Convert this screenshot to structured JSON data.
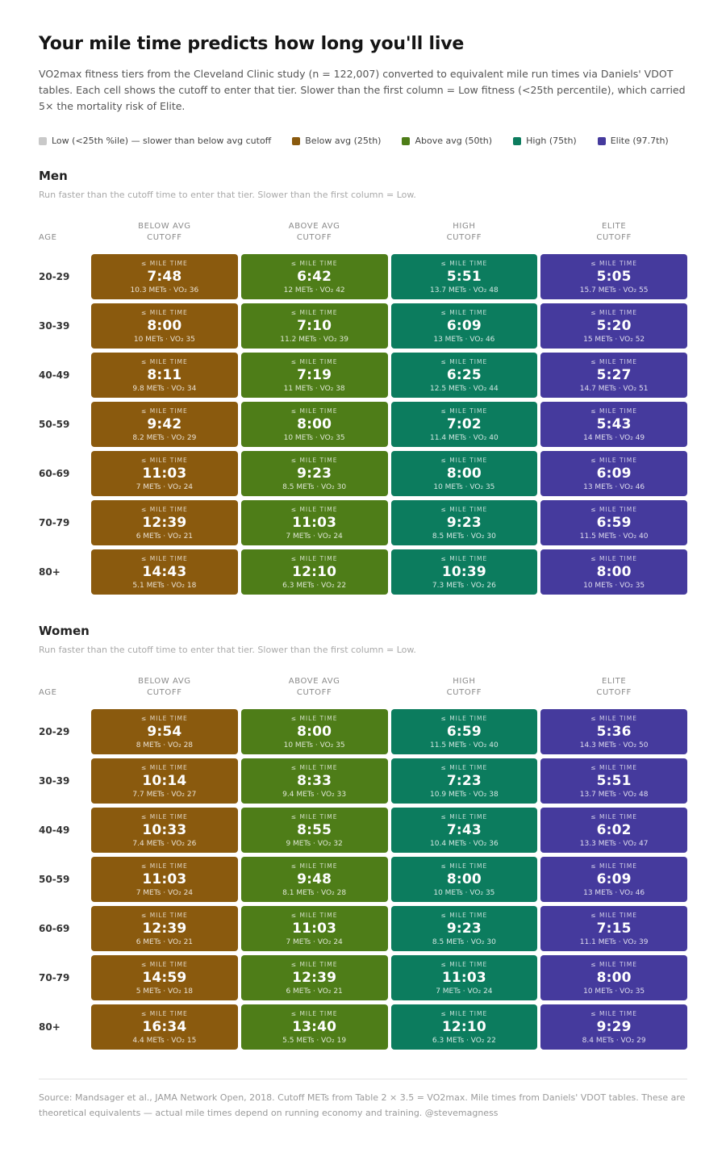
{
  "chart_data": {
    "type": "table",
    "title": "Your mile time predicts how long you'll live",
    "subtitle": "VO2max fitness tiers from the Cleveland Clinic study (n = 122,007) converted to equivalent mile run times via Daniels' VDOT tables. Each cell shows the cutoff to enter that tier. Slower than the first column = Low fitness (<25th percentile), which carried 5× the mortality risk of Elite.",
    "footer": "Source: Mandsager et al., JAMA Network Open, 2018. Cutoff METs from Table 2 × 3.5 = VO2max. Mile times from Daniels' VDOT tables. These are theoretical equivalents — actual mile times depend on running economy and training. @stevemagness",
    "tier_colors": {
      "low": "#c9c9c9",
      "below": "#8a5a0e",
      "above": "#4e7d18",
      "high": "#0c7c5e",
      "elite": "#453a9d"
    },
    "legend": [
      {
        "key": "low",
        "label": "Low (<25th %ile) — slower than below avg cutoff"
      },
      {
        "key": "below",
        "label": "Below avg (25th)"
      },
      {
        "key": "above",
        "label": "Above avg (50th)"
      },
      {
        "key": "high",
        "label": "High (75th)"
      },
      {
        "key": "elite",
        "label": "Elite (97.7th)"
      }
    ],
    "age_header": "AGE",
    "cell_label": "≤ MILE TIME",
    "columns": [
      {
        "key": "below",
        "lines": [
          "BELOW AVG",
          "CUTOFF"
        ]
      },
      {
        "key": "above",
        "lines": [
          "ABOVE AVG",
          "CUTOFF"
        ]
      },
      {
        "key": "high",
        "lines": [
          "HIGH",
          "CUTOFF"
        ]
      },
      {
        "key": "elite",
        "lines": [
          "ELITE",
          "CUTOFF"
        ]
      }
    ],
    "sections": [
      {
        "name": "Men",
        "caption": "Run faster than the cutoff time to enter that tier. Slower than the first column = Low.",
        "rows": [
          {
            "age": "20-29",
            "cells": [
              {
                "time": "7:48",
                "meta": "10.3 METs · VO₂ 36"
              },
              {
                "time": "6:42",
                "meta": "12 METs · VO₂ 42"
              },
              {
                "time": "5:51",
                "meta": "13.7 METs · VO₂ 48"
              },
              {
                "time": "5:05",
                "meta": "15.7 METs · VO₂ 55"
              }
            ]
          },
          {
            "age": "30-39",
            "cells": [
              {
                "time": "8:00",
                "meta": "10 METs · VO₂ 35"
              },
              {
                "time": "7:10",
                "meta": "11.2 METs · VO₂ 39"
              },
              {
                "time": "6:09",
                "meta": "13 METs · VO₂ 46"
              },
              {
                "time": "5:20",
                "meta": "15 METs · VO₂ 52"
              }
            ]
          },
          {
            "age": "40-49",
            "cells": [
              {
                "time": "8:11",
                "meta": "9.8 METs · VO₂ 34"
              },
              {
                "time": "7:19",
                "meta": "11 METs · VO₂ 38"
              },
              {
                "time": "6:25",
                "meta": "12.5 METs · VO₂ 44"
              },
              {
                "time": "5:27",
                "meta": "14.7 METs · VO₂ 51"
              }
            ]
          },
          {
            "age": "50-59",
            "cells": [
              {
                "time": "9:42",
                "meta": "8.2 METs · VO₂ 29"
              },
              {
                "time": "8:00",
                "meta": "10 METs · VO₂ 35"
              },
              {
                "time": "7:02",
                "meta": "11.4 METs · VO₂ 40"
              },
              {
                "time": "5:43",
                "meta": "14 METs · VO₂ 49"
              }
            ]
          },
          {
            "age": "60-69",
            "cells": [
              {
                "time": "11:03",
                "meta": "7 METs · VO₂ 24"
              },
              {
                "time": "9:23",
                "meta": "8.5 METs · VO₂ 30"
              },
              {
                "time": "8:00",
                "meta": "10 METs · VO₂ 35"
              },
              {
                "time": "6:09",
                "meta": "13 METs · VO₂ 46"
              }
            ]
          },
          {
            "age": "70-79",
            "cells": [
              {
                "time": "12:39",
                "meta": "6 METs · VO₂ 21"
              },
              {
                "time": "11:03",
                "meta": "7 METs · VO₂ 24"
              },
              {
                "time": "9:23",
                "meta": "8.5 METs · VO₂ 30"
              },
              {
                "time": "6:59",
                "meta": "11.5 METs · VO₂ 40"
              }
            ]
          },
          {
            "age": "80+",
            "cells": [
              {
                "time": "14:43",
                "meta": "5.1 METs · VO₂ 18"
              },
              {
                "time": "12:10",
                "meta": "6.3 METs · VO₂ 22"
              },
              {
                "time": "10:39",
                "meta": "7.3 METs · VO₂ 26"
              },
              {
                "time": "8:00",
                "meta": "10 METs · VO₂ 35"
              }
            ]
          }
        ]
      },
      {
        "name": "Women",
        "caption": "Run faster than the cutoff time to enter that tier. Slower than the first column = Low.",
        "rows": [
          {
            "age": "20-29",
            "cells": [
              {
                "time": "9:54",
                "meta": "8 METs · VO₂ 28"
              },
              {
                "time": "8:00",
                "meta": "10 METs · VO₂ 35"
              },
              {
                "time": "6:59",
                "meta": "11.5 METs · VO₂ 40"
              },
              {
                "time": "5:36",
                "meta": "14.3 METs · VO₂ 50"
              }
            ]
          },
          {
            "age": "30-39",
            "cells": [
              {
                "time": "10:14",
                "meta": "7.7 METs · VO₂ 27"
              },
              {
                "time": "8:33",
                "meta": "9.4 METs · VO₂ 33"
              },
              {
                "time": "7:23",
                "meta": "10.9 METs · VO₂ 38"
              },
              {
                "time": "5:51",
                "meta": "13.7 METs · VO₂ 48"
              }
            ]
          },
          {
            "age": "40-49",
            "cells": [
              {
                "time": "10:33",
                "meta": "7.4 METs · VO₂ 26"
              },
              {
                "time": "8:55",
                "meta": "9 METs · VO₂ 32"
              },
              {
                "time": "7:43",
                "meta": "10.4 METs · VO₂ 36"
              },
              {
                "time": "6:02",
                "meta": "13.3 METs · VO₂ 47"
              }
            ]
          },
          {
            "age": "50-59",
            "cells": [
              {
                "time": "11:03",
                "meta": "7 METs · VO₂ 24"
              },
              {
                "time": "9:48",
                "meta": "8.1 METs · VO₂ 28"
              },
              {
                "time": "8:00",
                "meta": "10 METs · VO₂ 35"
              },
              {
                "time": "6:09",
                "meta": "13 METs · VO₂ 46"
              }
            ]
          },
          {
            "age": "60-69",
            "cells": [
              {
                "time": "12:39",
                "meta": "6 METs · VO₂ 21"
              },
              {
                "time": "11:03",
                "meta": "7 METs · VO₂ 24"
              },
              {
                "time": "9:23",
                "meta": "8.5 METs · VO₂ 30"
              },
              {
                "time": "7:15",
                "meta": "11.1 METs · VO₂ 39"
              }
            ]
          },
          {
            "age": "70-79",
            "cells": [
              {
                "time": "14:59",
                "meta": "5 METs · VO₂ 18"
              },
              {
                "time": "12:39",
                "meta": "6 METs · VO₂ 21"
              },
              {
                "time": "11:03",
                "meta": "7 METs · VO₂ 24"
              },
              {
                "time": "8:00",
                "meta": "10 METs · VO₂ 35"
              }
            ]
          },
          {
            "age": "80+",
            "cells": [
              {
                "time": "16:34",
                "meta": "4.4 METs · VO₂ 15"
              },
              {
                "time": "13:40",
                "meta": "5.5 METs · VO₂ 19"
              },
              {
                "time": "12:10",
                "meta": "6.3 METs · VO₂ 22"
              },
              {
                "time": "9:29",
                "meta": "8.4 METs · VO₂ 29"
              }
            ]
          }
        ]
      }
    ]
  }
}
